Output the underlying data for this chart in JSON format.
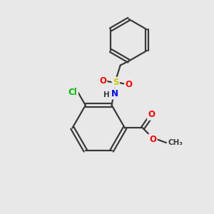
{
  "background_color": "#e8e8e8",
  "bond_color": "#3a3a3a",
  "bond_width": 1.6,
  "atom_colors": {
    "N": "#0000ff",
    "O": "#ff0000",
    "S": "#cccc00",
    "Cl": "#00bb00",
    "C": "#3a3a3a",
    "H": "#3a3a3a"
  },
  "font_size": 8.5
}
